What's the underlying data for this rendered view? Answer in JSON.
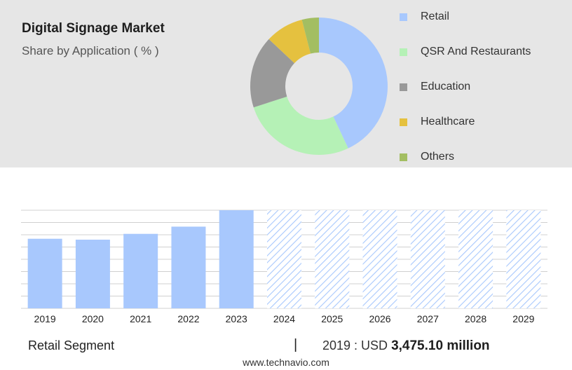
{
  "header": {
    "title": "Digital Signage Market",
    "subtitle": "Share by Application ( % )"
  },
  "colors": {
    "panel_background": "#e6e6e6",
    "bar_color": "#a8c8fd",
    "hatch_color": "#a8c8fd",
    "grid_color": "#d0d0d0"
  },
  "chart_data": [
    {
      "type": "pie",
      "variant": "donut",
      "legend_position": "right",
      "categories": [
        "Retail",
        "QSR And Restaurants",
        "Education",
        "Healthcare",
        "Others"
      ],
      "values": [
        43,
        27,
        17,
        9,
        4
      ],
      "colors": [
        "#a8c8fd",
        "#b5f1b6",
        "#999999",
        "#e5c13f",
        "#a3be62"
      ]
    },
    {
      "type": "bar",
      "categories": [
        "2019",
        "2020",
        "2021",
        "2022",
        "2023",
        "2024",
        "2025",
        "2026",
        "2027",
        "2028",
        "2029"
      ],
      "values": [
        3475.1,
        3430,
        3720,
        4080,
        4900,
        null,
        null,
        null,
        null,
        null,
        null
      ],
      "forecast_years_hatched": [
        "2024",
        "2025",
        "2026",
        "2027",
        "2028",
        "2029"
      ],
      "ylim": [
        0,
        4900
      ],
      "grid": true,
      "y_tick_labels_shown": false
    }
  ],
  "footer": {
    "segment_label": "Retail Segment",
    "separator": "|",
    "year_prefix": "2019 : USD",
    "amount": "3,475.10 million",
    "website": "www.technavio.com"
  }
}
